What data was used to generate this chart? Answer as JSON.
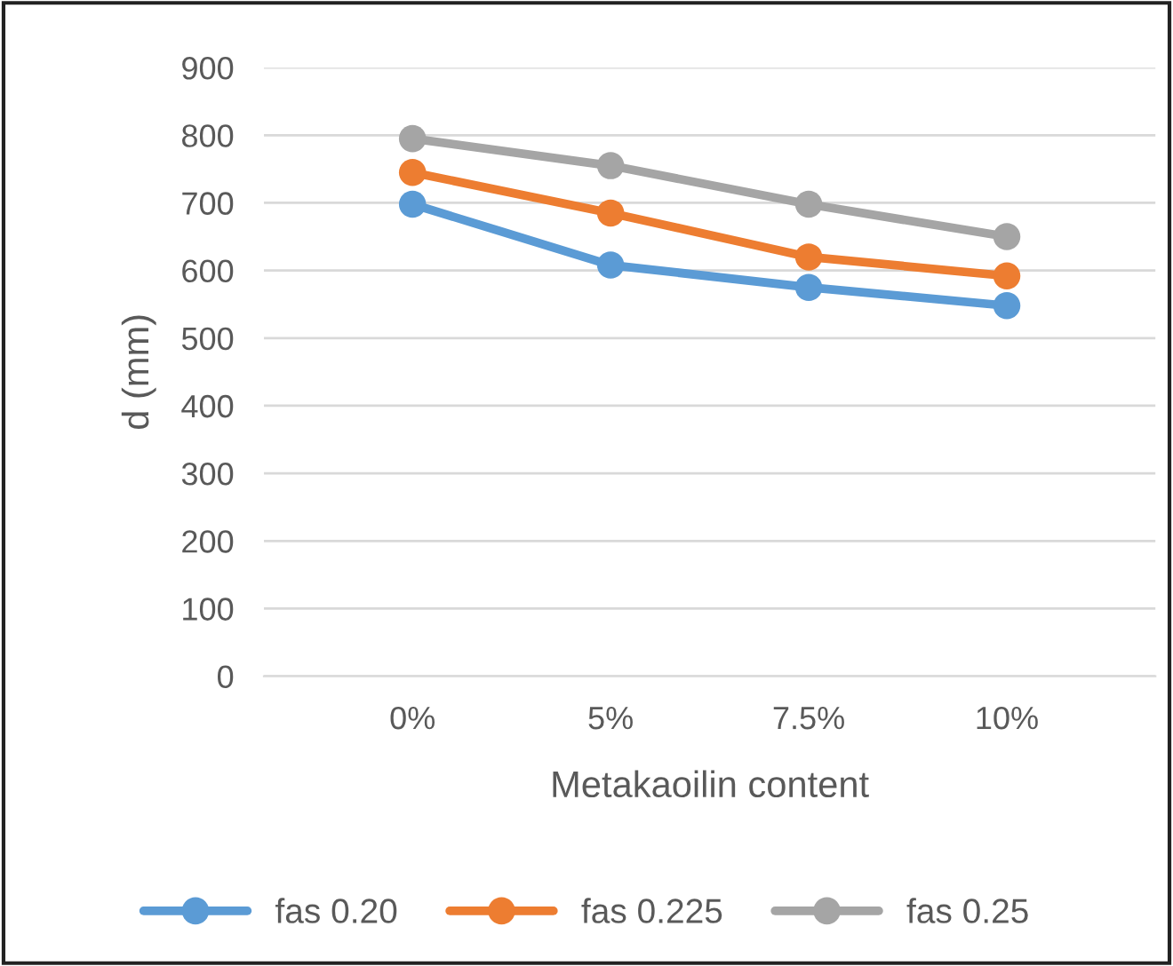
{
  "chart_data": {
    "type": "line",
    "xlabel": "Metakaoilin content",
    "ylabel": "d (mm)",
    "categories": [
      "0%",
      "5%",
      "7.5%",
      "10%"
    ],
    "series": [
      {
        "name": "fas 0.20",
        "color": "#5b9bd5",
        "values": [
          698,
          608,
          575,
          548
        ]
      },
      {
        "name": "fas 0.225",
        "color": "#ed7d31",
        "values": [
          745,
          685,
          620,
          592
        ]
      },
      {
        "name": "fas 0.25",
        "color": "#a5a5a5",
        "values": [
          795,
          755,
          698,
          650
        ]
      }
    ],
    "ylim": [
      0,
      900
    ],
    "yticks": [
      0,
      100,
      200,
      300,
      400,
      500,
      600,
      700,
      800,
      900
    ],
    "grid": "y",
    "legend": "bottom",
    "marker": "circle",
    "line_style": "solid"
  }
}
